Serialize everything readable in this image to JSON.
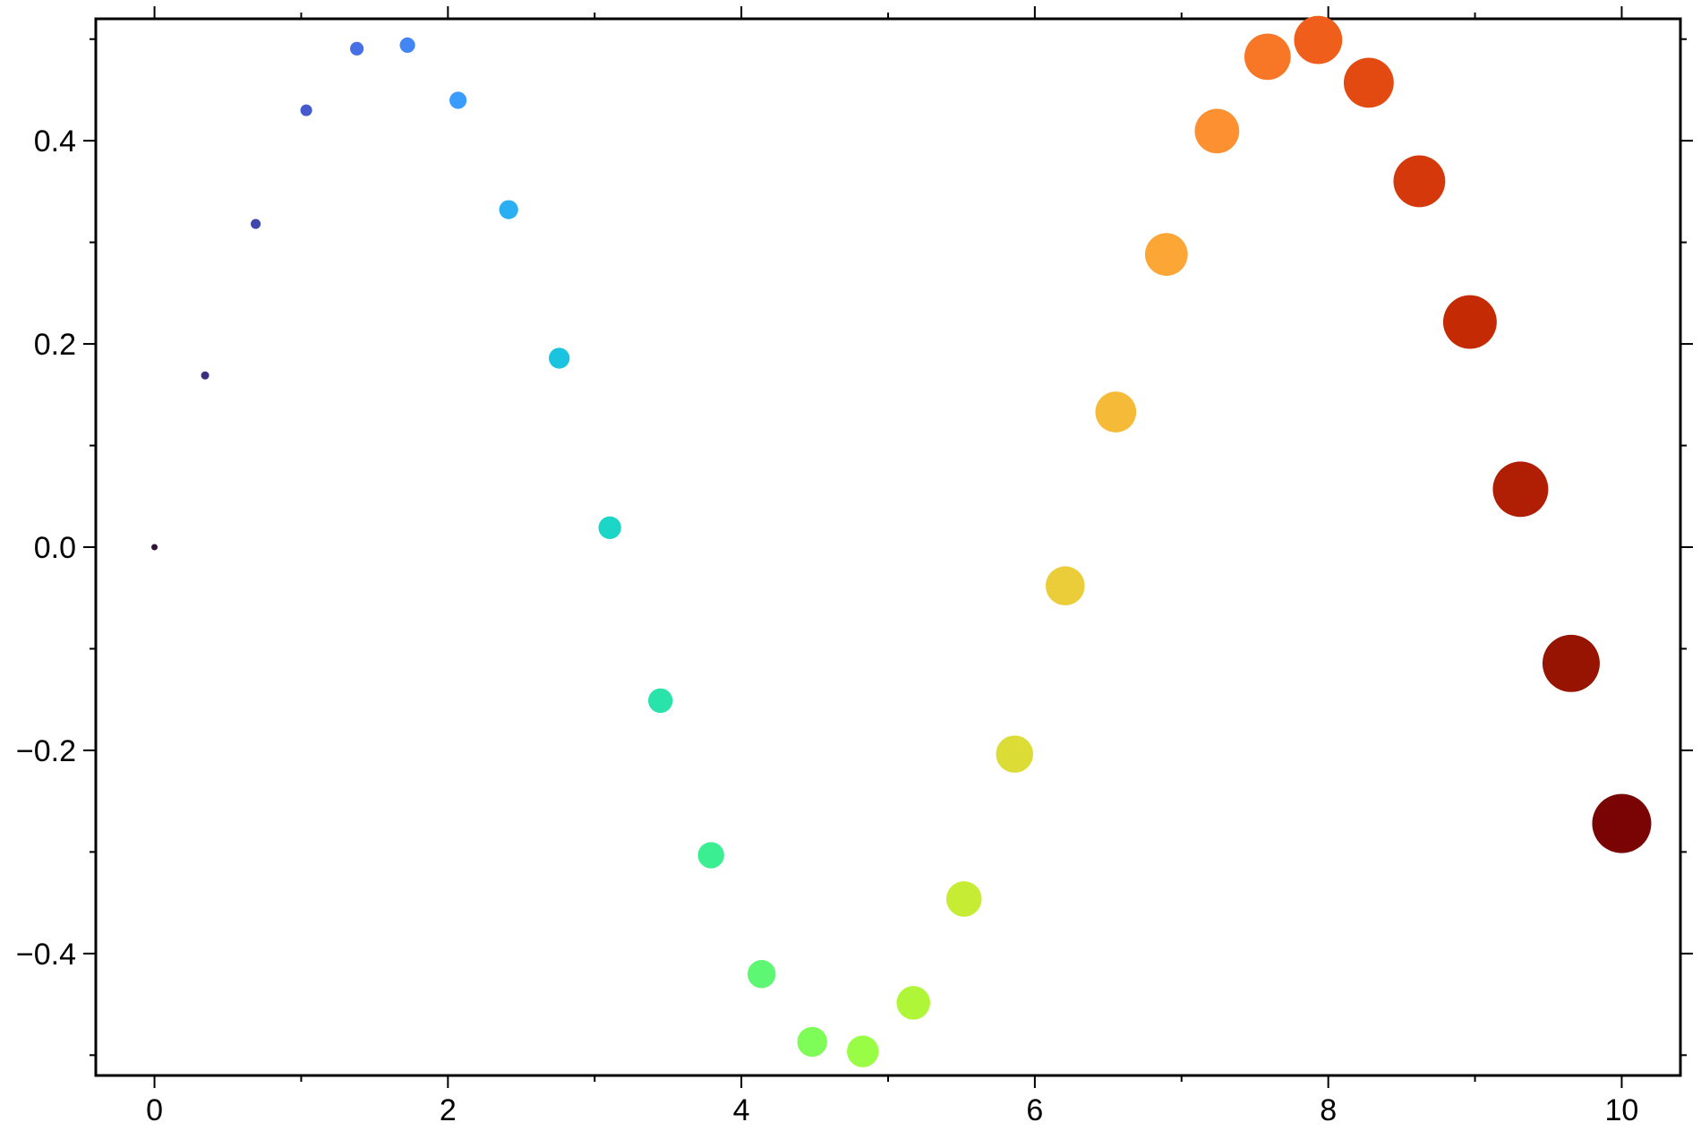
{
  "chart_data": {
    "type": "scatter",
    "x": [
      0,
      0.3448,
      0.6897,
      1.0345,
      1.3793,
      1.7241,
      2.069,
      2.4138,
      2.7586,
      3.1034,
      3.4483,
      3.7931,
      4.1379,
      4.4828,
      4.8276,
      5.1724,
      5.5172,
      5.8621,
      6.2069,
      6.5517,
      6.8966,
      7.2414,
      7.5862,
      7.931,
      8.2759,
      8.6207,
      8.9655,
      9.3103,
      9.6552,
      10
    ],
    "values": [
      0,
      0.169,
      0.3181,
      0.43,
      0.4906,
      0.4941,
      0.4398,
      0.3322,
      0.186,
      0.0191,
      -0.1511,
      -0.3032,
      -0.4202,
      -0.4869,
      -0.4963,
      -0.4485,
      -0.3463,
      -0.2037,
      -0.0381,
      0.133,
      0.2881,
      0.4095,
      0.4827,
      0.4992,
      0.4571,
      0.3601,
      0.2216,
      0.057,
      -0.1144,
      -0.272
    ],
    "colors": [
      "#30123b",
      "#3b2f80",
      "#4146ad",
      "#455bcd",
      "#4670e4",
      "#4286f5",
      "#3a9cfc",
      "#2ab0f2",
      "#1bc4de",
      "#1bd5c6",
      "#2ae3ab",
      "#3cee92",
      "#5ef774",
      "#7efd59",
      "#9afd45",
      "#aff639",
      "#c6ec33",
      "#dbdd36",
      "#ebcd3a",
      "#f6ba39",
      "#fca636",
      "#fd9030",
      "#f87727",
      "#ef5f1b",
      "#e34a12",
      "#d5390b",
      "#c42b05",
      "#b01e03",
      "#971302",
      "#7a0403"
    ],
    "xlim": [
      -0.4,
      10.4
    ],
    "ylim": [
      -0.52,
      0.52
    ],
    "xticks": [
      0,
      2,
      4,
      6,
      8,
      10
    ],
    "xminorticks": [
      1,
      3,
      5,
      7,
      9
    ],
    "yticks": [
      {
        "value": -0.4,
        "label": "−0.4"
      },
      {
        "value": -0.2,
        "label": "−0.2"
      },
      {
        "value": 0,
        "label": "0.0"
      },
      0.2,
      0.4
    ],
    "yminorticks": [
      -0.5,
      -0.3,
      -0.1,
      0.1,
      0.3,
      0.5
    ]
  }
}
